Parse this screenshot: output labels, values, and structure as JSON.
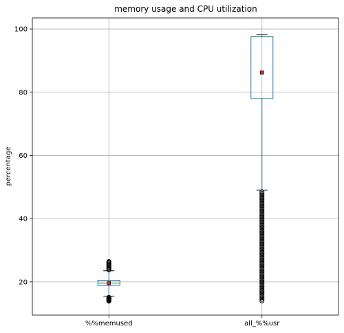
{
  "chart_data": {
    "type": "box",
    "title": "memory usage and CPU utilization",
    "xlabel": "",
    "ylabel": "percentage",
    "ylim": [
      9.5,
      103.5
    ],
    "yticks": [
      20,
      40,
      60,
      80,
      100
    ],
    "grid": true,
    "categories": [
      "%%memused",
      "all_%%usr"
    ],
    "boxes": [
      {
        "name": "%%memused",
        "whisker_low": 15.5,
        "q1": 18.9,
        "median": 19.6,
        "q3": 20.5,
        "whisker_high": 23.5,
        "mean": 19.6,
        "outliers": [
          13.9,
          14.1,
          14.3,
          14.5,
          14.7,
          14.9,
          15.1,
          23.8,
          24.1,
          24.4,
          24.7,
          25.0,
          25.3,
          25.6,
          25.9,
          26.2,
          26.4
        ]
      },
      {
        "name": "all_%%usr",
        "whisker_low": 49.0,
        "q1": 78.0,
        "median": 97.5,
        "q3": 97.6,
        "whisker_high": 98.2,
        "mean": 86.2,
        "outliers": [
          14.0,
          14.5,
          15.0,
          15.5,
          16.0,
          16.5,
          17.0,
          17.5,
          18.0,
          18.5,
          19.0,
          19.5,
          20.0,
          20.5,
          21.0,
          21.5,
          22.0,
          22.5,
          23.0,
          23.5,
          24.0,
          24.5,
          25.0,
          25.5,
          26.0,
          26.5,
          27.0,
          27.5,
          28.0,
          28.5,
          29.0,
          29.5,
          30.0,
          30.5,
          31.0,
          31.5,
          32.0,
          32.5,
          33.0,
          33.5,
          34.0,
          34.5,
          35.0,
          35.5,
          36.0,
          36.5,
          37.0,
          37.5,
          38.0,
          38.5,
          39.0,
          39.5,
          40.0,
          40.5,
          41.0,
          41.5,
          42.0,
          42.5,
          43.0,
          43.5,
          44.0,
          44.5,
          45.0,
          45.5,
          46.0,
          46.5,
          47.0,
          47.5,
          48.0,
          48.5
        ]
      }
    ],
    "colors": {
      "box": "#1f77b4",
      "median": "#2ca02c",
      "mean_marker": "#d62728",
      "grid": "#b0b0b0",
      "axis": "#000000"
    }
  }
}
